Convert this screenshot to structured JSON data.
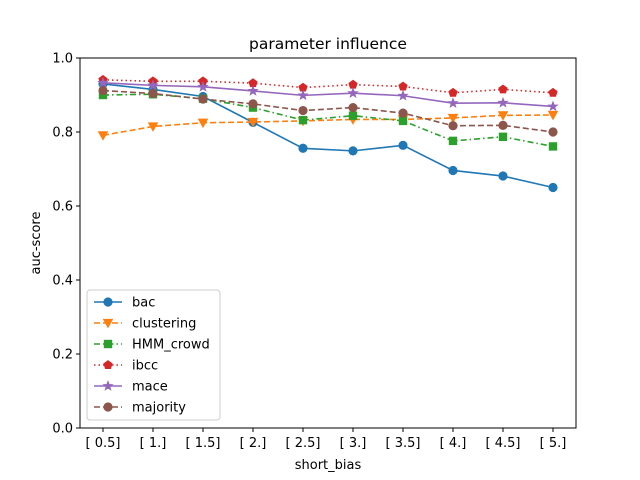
{
  "chart_data": {
    "type": "line",
    "title": "parameter influence",
    "xlabel": "short_bias",
    "ylabel": "auc-score",
    "categories": [
      "[ 0.5]",
      "[ 1.]",
      "[ 1.5]",
      "[ 2.]",
      "[ 2.5]",
      "[ 3.]",
      "[ 3.5]",
      "[ 4.]",
      "[ 4.5]",
      "[ 5.]"
    ],
    "ylim": [
      0.0,
      1.0
    ],
    "yticks": [
      "0.0",
      "0.2",
      "0.4",
      "0.6",
      "0.8",
      "1.0"
    ],
    "grid": false,
    "legend_position": "lower-left",
    "series": [
      {
        "name": "bac",
        "color": "#1f77b4",
        "dash": "solid",
        "marker": "circle",
        "values": [
          0.93,
          0.915,
          0.896,
          0.826,
          0.756,
          0.749,
          0.764,
          0.696,
          0.681,
          0.65
        ]
      },
      {
        "name": "clustering",
        "color": "#ff7f0e",
        "dash": "dashed",
        "marker": "triangle-down",
        "values": [
          0.791,
          0.815,
          0.825,
          0.827,
          0.83,
          0.834,
          0.834,
          0.838,
          0.845,
          0.846
        ]
      },
      {
        "name": "HMM_crowd",
        "color": "#2ca02c",
        "dash": "dashdot",
        "marker": "square",
        "values": [
          0.9,
          0.902,
          0.89,
          0.866,
          0.832,
          0.844,
          0.83,
          0.776,
          0.787,
          0.761
        ]
      },
      {
        "name": "ibcc",
        "color": "#d62728",
        "dash": "dotted",
        "marker": "pentagon",
        "values": [
          0.941,
          0.937,
          0.937,
          0.932,
          0.92,
          0.928,
          0.923,
          0.906,
          0.915,
          0.906
        ]
      },
      {
        "name": "mace",
        "color": "#9467bd",
        "dash": "solid",
        "marker": "star",
        "values": [
          0.933,
          0.926,
          0.922,
          0.911,
          0.899,
          0.905,
          0.898,
          0.878,
          0.879,
          0.869
        ]
      },
      {
        "name": "majority",
        "color": "#8c564b",
        "dash": "dashed",
        "marker": "circle",
        "values": [
          0.912,
          0.904,
          0.889,
          0.876,
          0.858,
          0.866,
          0.851,
          0.817,
          0.818,
          0.8
        ]
      }
    ]
  }
}
